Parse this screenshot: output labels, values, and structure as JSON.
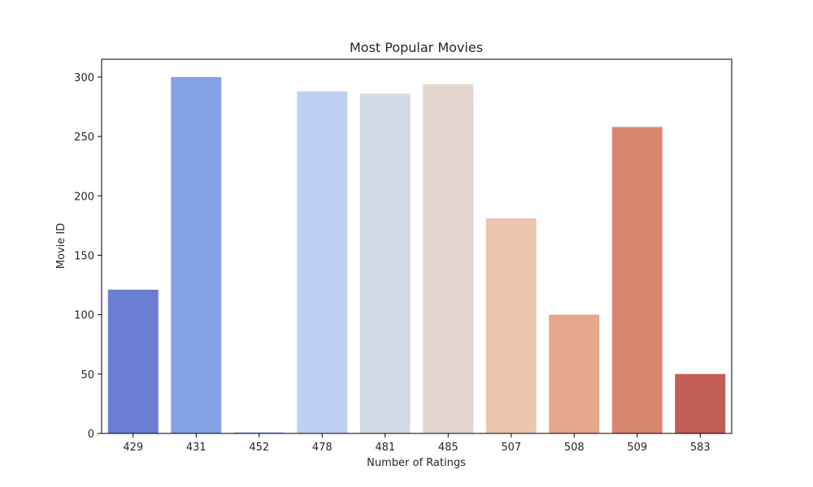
{
  "chart_data": {
    "type": "bar",
    "title": "Most Popular Movies",
    "xlabel": "Number of Ratings",
    "ylabel": "Movie ID",
    "categories": [
      "429",
      "431",
      "452",
      "478",
      "481",
      "485",
      "507",
      "508",
      "509",
      "583"
    ],
    "values": [
      121,
      300,
      1,
      288,
      286,
      294,
      181,
      100,
      258,
      50
    ],
    "colors": [
      "#6a7fd3",
      "#85a2e6",
      "#a7c0f2",
      "#bed0f1",
      "#d4dbe6",
      "#e3d6ce",
      "#ecc5ae",
      "#e6a78d",
      "#d8856f",
      "#c25e54"
    ],
    "ylim": [
      0,
      315
    ],
    "yticks": [
      0,
      50,
      100,
      150,
      200,
      250,
      300
    ],
    "grid": false,
    "legend": "none"
  }
}
